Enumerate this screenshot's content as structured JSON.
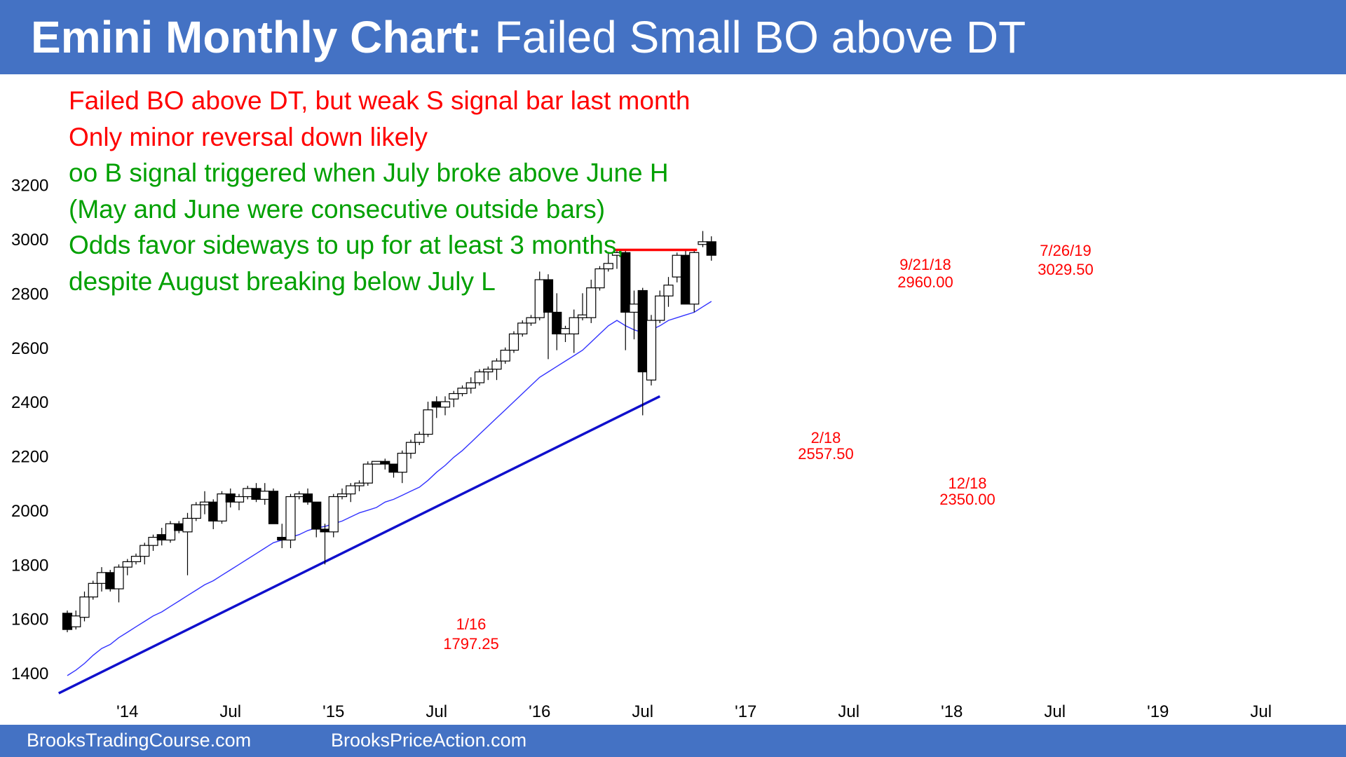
{
  "title": {
    "bold": "Emini Monthly Chart:",
    "rest": "Failed Small BO above DT"
  },
  "notes": [
    {
      "text": "Failed BO above DT, but weak S signal bar last month",
      "color": "#ff0000"
    },
    {
      "text": "Only minor reversal down likely",
      "color": "#ff0000"
    },
    {
      "text": "oo B signal triggered when July broke above June H",
      "color": "#00a000"
    },
    {
      "text": "(May and June were consecutive outside bars)",
      "color": "#00a000"
    },
    {
      "text": "Odds favor sideways to up for at least 3 months,",
      "color": "#00a000"
    },
    {
      "text": "despite August breaking below July L",
      "color": "#00a000"
    }
  ],
  "footer": {
    "left": "BrooksTradingCourse.com",
    "right": "BrooksPriceAction.com"
  },
  "chart_data": {
    "type": "candlestick",
    "ylim": [
      1320,
      3240
    ],
    "yticks": [
      1400,
      1600,
      1800,
      2000,
      2200,
      2400,
      2600,
      2800,
      3000,
      3200
    ],
    "xticks": [
      "'14",
      "Jul",
      "'15",
      "Jul",
      "'16",
      "Jul",
      "'17",
      "Jul",
      "'18",
      "Jul",
      "'19",
      "Jul"
    ],
    "colors": {
      "up": "#ffffff",
      "down": "#000000",
      "ema": "#3333ff",
      "trendline": "#1010cc",
      "resistance": "#ff0000"
    },
    "candles": [
      {
        "o": 1620,
        "h": 1630,
        "l": 1550,
        "c": 1560
      },
      {
        "o": 1570,
        "h": 1630,
        "l": 1560,
        "c": 1610
      },
      {
        "o": 1605,
        "h": 1700,
        "l": 1590,
        "c": 1680
      },
      {
        "o": 1680,
        "h": 1740,
        "l": 1670,
        "c": 1730
      },
      {
        "o": 1730,
        "h": 1790,
        "l": 1700,
        "c": 1770
      },
      {
        "o": 1770,
        "h": 1780,
        "l": 1700,
        "c": 1710
      },
      {
        "o": 1710,
        "h": 1800,
        "l": 1660,
        "c": 1790
      },
      {
        "o": 1790,
        "h": 1820,
        "l": 1760,
        "c": 1810
      },
      {
        "o": 1810,
        "h": 1840,
        "l": 1800,
        "c": 1830
      },
      {
        "o": 1830,
        "h": 1880,
        "l": 1800,
        "c": 1870
      },
      {
        "o": 1870,
        "h": 1910,
        "l": 1850,
        "c": 1900
      },
      {
        "o": 1910,
        "h": 1935,
        "l": 1870,
        "c": 1890
      },
      {
        "o": 1890,
        "h": 1960,
        "l": 1880,
        "c": 1950
      },
      {
        "o": 1950,
        "h": 1960,
        "l": 1915,
        "c": 1925
      },
      {
        "o": 1920,
        "h": 1990,
        "l": 1760,
        "c": 1970
      },
      {
        "o": 1970,
        "h": 2030,
        "l": 1960,
        "c": 2020
      },
      {
        "o": 2020,
        "h": 2070,
        "l": 1985,
        "c": 2030
      },
      {
        "o": 2030,
        "h": 2040,
        "l": 1930,
        "c": 1960
      },
      {
        "o": 1960,
        "h": 2070,
        "l": 1950,
        "c": 2060
      },
      {
        "o": 2060,
        "h": 2080,
        "l": 2010,
        "c": 2030
      },
      {
        "o": 2030,
        "h": 2060,
        "l": 2000,
        "c": 2050
      },
      {
        "o": 2050,
        "h": 2090,
        "l": 2040,
        "c": 2080
      },
      {
        "o": 2080,
        "h": 2100,
        "l": 2030,
        "c": 2040
      },
      {
        "o": 2040,
        "h": 2100,
        "l": 2020,
        "c": 2070
      },
      {
        "o": 2070,
        "h": 2080,
        "l": 1950,
        "c": 1950
      },
      {
        "o": 1900,
        "h": 1950,
        "l": 1860,
        "c": 1890
      },
      {
        "o": 1890,
        "h": 2060,
        "l": 1860,
        "c": 2050
      },
      {
        "o": 2050,
        "h": 2070,
        "l": 2040,
        "c": 2060
      },
      {
        "o": 2060,
        "h": 2080,
        "l": 2020,
        "c": 2030
      },
      {
        "o": 2030,
        "h": 2030,
        "l": 1900,
        "c": 1930
      },
      {
        "o": 1930,
        "h": 1950,
        "l": 1800,
        "c": 1920
      },
      {
        "o": 1920,
        "h": 2060,
        "l": 1900,
        "c": 2050
      },
      {
        "o": 2050,
        "h": 2080,
        "l": 2040,
        "c": 2060
      },
      {
        "o": 2060,
        "h": 2100,
        "l": 2030,
        "c": 2090
      },
      {
        "o": 2090,
        "h": 2110,
        "l": 2070,
        "c": 2100
      },
      {
        "o": 2100,
        "h": 2180,
        "l": 2090,
        "c": 2170
      },
      {
        "o": 2170,
        "h": 2180,
        "l": 2170,
        "c": 2180
      },
      {
        "o": 2180,
        "h": 2190,
        "l": 2150,
        "c": 2170
      },
      {
        "o": 2170,
        "h": 2170,
        "l": 2120,
        "c": 2140
      },
      {
        "o": 2140,
        "h": 2220,
        "l": 2100,
        "c": 2210
      },
      {
        "o": 2210,
        "h": 2260,
        "l": 2190,
        "c": 2250
      },
      {
        "o": 2250,
        "h": 2290,
        "l": 2240,
        "c": 2280
      },
      {
        "o": 2280,
        "h": 2400,
        "l": 2270,
        "c": 2370
      },
      {
        "o": 2400,
        "h": 2420,
        "l": 2340,
        "c": 2380
      },
      {
        "o": 2380,
        "h": 2420,
        "l": 2350,
        "c": 2400
      },
      {
        "o": 2410,
        "h": 2440,
        "l": 2380,
        "c": 2430
      },
      {
        "o": 2430,
        "h": 2460,
        "l": 2420,
        "c": 2450
      },
      {
        "o": 2450,
        "h": 2490,
        "l": 2430,
        "c": 2470
      },
      {
        "o": 2470,
        "h": 2520,
        "l": 2460,
        "c": 2510
      },
      {
        "o": 2510,
        "h": 2530,
        "l": 2480,
        "c": 2520
      },
      {
        "o": 2520,
        "h": 2560,
        "l": 2480,
        "c": 2550
      },
      {
        "o": 2550,
        "h": 2600,
        "l": 2540,
        "c": 2590
      },
      {
        "o": 2590,
        "h": 2660,
        "l": 2580,
        "c": 2650
      },
      {
        "o": 2650,
        "h": 2700,
        "l": 2640,
        "c": 2690
      },
      {
        "o": 2690,
        "h": 2720,
        "l": 2680,
        "c": 2710
      },
      {
        "o": 2710,
        "h": 2880,
        "l": 2700,
        "c": 2850
      },
      {
        "o": 2850,
        "h": 2870,
        "l": 2557,
        "c": 2730
      },
      {
        "o": 2730,
        "h": 2800,
        "l": 2590,
        "c": 2650
      },
      {
        "o": 2650,
        "h": 2680,
        "l": 2620,
        "c": 2670
      },
      {
        "o": 2650,
        "h": 2740,
        "l": 2580,
        "c": 2710
      },
      {
        "o": 2710,
        "h": 2800,
        "l": 2700,
        "c": 2720
      },
      {
        "o": 2710,
        "h": 2850,
        "l": 2690,
        "c": 2820
      },
      {
        "o": 2820,
        "h": 2900,
        "l": 2810,
        "c": 2890
      },
      {
        "o": 2890,
        "h": 2950,
        "l": 2880,
        "c": 2910
      },
      {
        "o": 2940,
        "h": 2960,
        "l": 2890,
        "c": 2950
      },
      {
        "o": 2950,
        "h": 2960,
        "l": 2590,
        "c": 2730
      },
      {
        "o": 2730,
        "h": 2810,
        "l": 2630,
        "c": 2760
      },
      {
        "o": 2810,
        "h": 2820,
        "l": 2350,
        "c": 2510
      },
      {
        "o": 2480,
        "h": 2720,
        "l": 2460,
        "c": 2700
      },
      {
        "o": 2700,
        "h": 2810,
        "l": 2690,
        "c": 2790
      },
      {
        "o": 2790,
        "h": 2860,
        "l": 2750,
        "c": 2830
      },
      {
        "o": 2860,
        "h": 2950,
        "l": 2840,
        "c": 2940
      },
      {
        "o": 2940,
        "h": 2960,
        "l": 2760,
        "c": 2760
      },
      {
        "o": 2760,
        "h": 2960,
        "l": 2730,
        "c": 2950
      },
      {
        "o": 2980,
        "h": 3029.5,
        "l": 2970,
        "c": 2990
      },
      {
        "o": 2990,
        "h": 3010,
        "l": 2920,
        "c": 2940
      }
    ],
    "ema": [
      1390,
      1410,
      1435,
      1465,
      1490,
      1505,
      1530,
      1550,
      1570,
      1590,
      1610,
      1625,
      1645,
      1665,
      1685,
      1705,
      1725,
      1740,
      1760,
      1780,
      1800,
      1820,
      1840,
      1860,
      1880,
      1890,
      1900,
      1910,
      1925,
      1935,
      1940,
      1950,
      1960,
      1975,
      1990,
      2000,
      2010,
      2030,
      2040,
      2055,
      2070,
      2085,
      2110,
      2140,
      2165,
      2195,
      2220,
      2250,
      2280,
      2310,
      2340,
      2370,
      2400,
      2430,
      2460,
      2490,
      2510,
      2530,
      2550,
      2570,
      2590,
      2620,
      2650,
      2680,
      2700,
      2680,
      2665,
      2655,
      2665,
      2680,
      2700,
      2710,
      2720,
      2730,
      2750,
      2770
    ],
    "trendline": {
      "from": [
        -1,
        1325
      ],
      "to": [
        69,
        2420
      ]
    },
    "resistance": {
      "from": [
        64,
        2960
      ],
      "to": [
        73,
        2960
      ]
    },
    "annotations": [
      {
        "text": "1/16",
        "price": 1797.25
      },
      {
        "text": "2/18",
        "price": 2557.5
      },
      {
        "text": "9/21/18",
        "price": 2960.0
      },
      {
        "text": "12/18",
        "price": 2350.0
      },
      {
        "text": "7/26/19",
        "price": 3029.5
      }
    ]
  }
}
